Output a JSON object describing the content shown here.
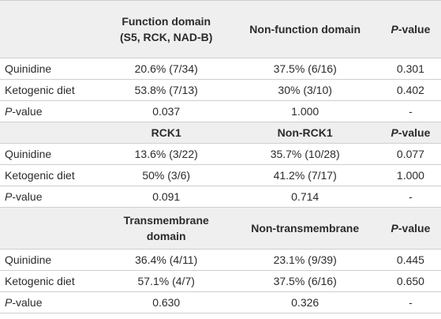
{
  "table": {
    "sections": [
      {
        "header": [
          "Function domain\n(S5, RCK, NAD-B)",
          "Non-function domain",
          "P-value"
        ],
        "rows": [
          [
            "Quinidine",
            "20.6% (7/34)",
            "37.5% (6/16)",
            "0.301"
          ],
          [
            "Ketogenic diet",
            "53.8% (7/13)",
            "30% (3/10)",
            "0.402"
          ],
          [
            "P-value",
            "0.037",
            "1.000",
            "-"
          ]
        ]
      },
      {
        "header": [
          "RCK1",
          "Non-RCK1",
          "P-value"
        ],
        "rows": [
          [
            "Quinidine",
            "13.6% (3/22)",
            "35.7% (10/28)",
            "0.077"
          ],
          [
            "Ketogenic diet",
            "50% (3/6)",
            "41.2% (7/17)",
            "1.000"
          ],
          [
            "P-value",
            "0.091",
            "0.714",
            "-"
          ]
        ]
      },
      {
        "header": [
          "Transmembrane\ndomain",
          "Non-transmembrane",
          "P-value"
        ],
        "rows": [
          [
            "Quinidine",
            "36.4% (4/11)",
            "23.1% (9/39)",
            "0.445"
          ],
          [
            "Ketogenic diet",
            "57.1% (4/7)",
            "37.5% (6/16)",
            "0.650"
          ],
          [
            "P-value",
            "0.630",
            "0.326",
            "-"
          ]
        ]
      }
    ]
  }
}
